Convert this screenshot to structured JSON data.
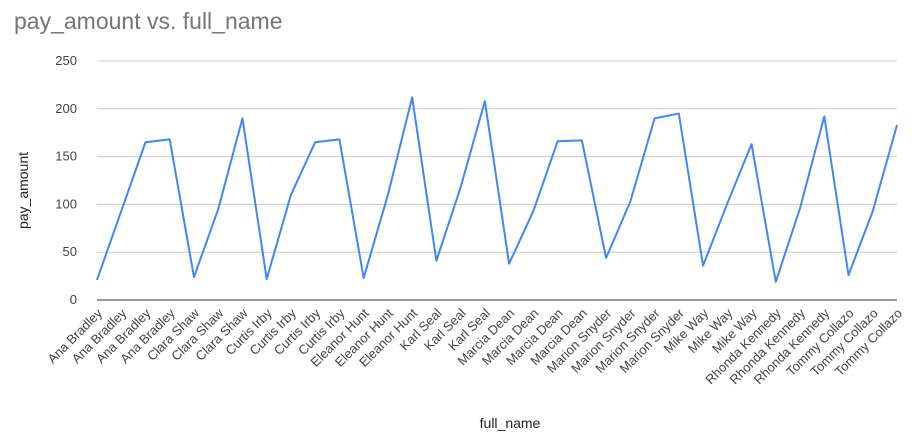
{
  "chart_data": {
    "type": "line",
    "title": "pay_amount vs. full_name",
    "xlabel": "full_name",
    "ylabel": "pay_amount",
    "ylim": [
      0,
      250
    ],
    "yticks": [
      0,
      50,
      100,
      150,
      200,
      250
    ],
    "grid": true,
    "legend": "none",
    "line_color": "#4285f4",
    "categories": [
      "Ana Bradley",
      "Ana Bradley",
      "Ana Bradley",
      "Ana Bradley",
      "Clara Shaw",
      "Clara Shaw",
      "Clara Shaw",
      "Curtis Irby",
      "Curtis Irby",
      "Curtis Irby",
      "Curtis Irby",
      "Eleanor Hunt",
      "Eleanor Hunt",
      "Eleanor Hunt",
      "Karl Seal",
      "Karl Seal",
      "Karl Seal",
      "Marcia Dean",
      "Marcia Dean",
      "Marcia Dean",
      "Marcia Dean",
      "Marion Snyder",
      "Marion Snyder",
      "Marion Snyder",
      "Marion Snyder",
      "Mike Way",
      "Mike Way",
      "Mike Way",
      "Rhonda Kennedy",
      "Rhonda Kennedy",
      "Rhonda Kennedy",
      "Tommy Collazo",
      "Tommy Collazo",
      "Tommy Collazo"
    ],
    "series": [
      {
        "values": [
          21,
          93,
          165,
          168,
          24,
          95,
          190,
          22,
          110,
          165,
          168,
          23,
          110,
          212,
          41,
          118,
          208,
          38,
          93,
          166,
          167,
          44,
          103,
          190,
          195,
          36,
          101,
          163,
          19,
          96,
          192,
          26,
          93,
          183
        ]
      }
    ]
  }
}
